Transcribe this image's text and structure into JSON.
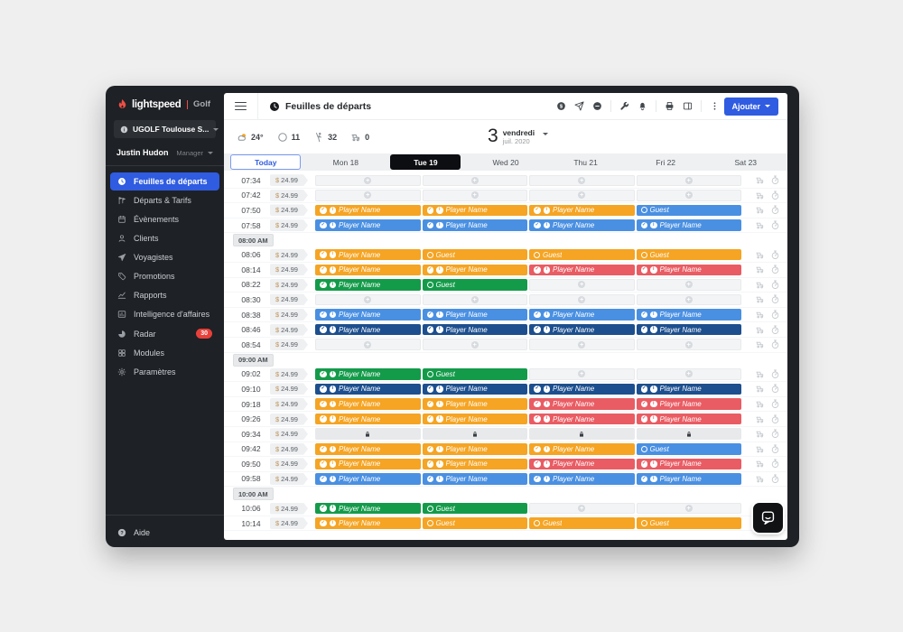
{
  "colors": {
    "accent_blue": "#2F5CE0",
    "brand_red": "#ED4F45",
    "badge_red": "#E8403A",
    "selected_tab_bg": "#0C0E12",
    "slot": {
      "orange": "#F5A423",
      "red": "#E95C63",
      "green": "#149B4A",
      "blue": "#4A90E2",
      "navy": "#1D4F8E"
    },
    "empty_bg": "#F3F4F6",
    "locked_bg": "#E7E9EB"
  },
  "sidebar": {
    "logo": {
      "brand": "lightspeed",
      "product": "Golf"
    },
    "course": "UGOLF Toulouse S...",
    "user": {
      "name": "Justin Hudon",
      "role": "Manager"
    },
    "items": [
      {
        "label": "Feuilles de départs",
        "icon": "clock",
        "active": true
      },
      {
        "label": "Départs & Tarifs",
        "icon": "flags"
      },
      {
        "label": "Évènements",
        "icon": "calendar"
      },
      {
        "label": "Clients",
        "icon": "person"
      },
      {
        "label": "Voyagistes",
        "icon": "plane"
      },
      {
        "label": "Promotions",
        "icon": "tag"
      },
      {
        "label": "Rapports",
        "icon": "chart"
      },
      {
        "label": "Intelligence d'affaires",
        "icon": "bi"
      },
      {
        "label": "Radar",
        "icon": "radar",
        "badge": "30"
      },
      {
        "label": "Modules",
        "icon": "modules"
      },
      {
        "label": "Paramètres",
        "icon": "gear"
      }
    ],
    "help_label": "Aide"
  },
  "topbar": {
    "title": "Feuilles de départs",
    "add_label": "Ajouter",
    "action_groups": [
      [
        "dollar-circle",
        "send",
        "minus-circle"
      ],
      [
        "wrench",
        "bell"
      ],
      [
        "printer",
        "panel"
      ],
      [
        "kebab"
      ]
    ]
  },
  "weather": {
    "items": [
      {
        "name": "temperature",
        "icon": "cloud-sun",
        "value": "24°"
      },
      {
        "name": "rounds",
        "icon": "circle",
        "value": "11"
      },
      {
        "name": "golfers",
        "icon": "golfer",
        "value": "32"
      },
      {
        "name": "carts",
        "icon": "cart",
        "value": "0"
      }
    ]
  },
  "date": {
    "day": "3",
    "weekday": "vendredi",
    "monthyear": "juil. 2020"
  },
  "tabs": [
    {
      "label": "Today",
      "variant": "today"
    },
    {
      "label": "Mon 18"
    },
    {
      "label": "Tue 19",
      "variant": "selected"
    },
    {
      "label": "Wed 20"
    },
    {
      "label": "Thu 21"
    },
    {
      "label": "Fri 22"
    },
    {
      "label": "Sat 23"
    }
  ],
  "sheet": {
    "price": {
      "currency": "$",
      "amount": "24.99"
    },
    "rows": [
      {
        "type": "row",
        "time": "07:34",
        "slots": [
          {
            "kind": "empty"
          },
          {
            "kind": "empty"
          },
          {
            "kind": "empty"
          },
          {
            "kind": "empty"
          }
        ]
      },
      {
        "type": "row",
        "time": "07:42",
        "slots": [
          {
            "kind": "empty"
          },
          {
            "kind": "empty"
          },
          {
            "kind": "empty"
          },
          {
            "kind": "empty"
          }
        ]
      },
      {
        "type": "row",
        "time": "07:50",
        "slots": [
          {
            "kind": "player",
            "label": "Player Name",
            "color": "orange"
          },
          {
            "kind": "player",
            "label": "Player Name",
            "color": "orange"
          },
          {
            "kind": "player",
            "label": "Player Name",
            "color": "orange"
          },
          {
            "kind": "guest",
            "label": "Guest",
            "color": "blue"
          }
        ]
      },
      {
        "type": "row",
        "time": "07:58",
        "slots": [
          {
            "kind": "player",
            "label": "Player Name",
            "color": "blue"
          },
          {
            "kind": "player",
            "label": "Player Name",
            "color": "blue"
          },
          {
            "kind": "player",
            "label": "Player Name",
            "color": "blue"
          },
          {
            "kind": "player",
            "label": "Player Name",
            "color": "blue"
          }
        ]
      },
      {
        "type": "header",
        "label": "08:00 AM"
      },
      {
        "type": "row",
        "time": "08:06",
        "slots": [
          {
            "kind": "player",
            "label": "Player Name",
            "color": "orange"
          },
          {
            "kind": "guest",
            "label": "Guest",
            "color": "orange"
          },
          {
            "kind": "guest",
            "label": "Guest",
            "color": "orange"
          },
          {
            "kind": "guest",
            "label": "Guest",
            "color": "orange"
          }
        ]
      },
      {
        "type": "row",
        "time": "08:14",
        "slots": [
          {
            "kind": "player",
            "label": "Player Name",
            "color": "orange"
          },
          {
            "kind": "player",
            "label": "Player Name",
            "color": "orange"
          },
          {
            "kind": "player",
            "label": "Player Name",
            "color": "red"
          },
          {
            "kind": "player",
            "label": "Player Name",
            "color": "red"
          }
        ]
      },
      {
        "type": "row",
        "time": "08:22",
        "slots": [
          {
            "kind": "player",
            "label": "Player Name",
            "color": "green"
          },
          {
            "kind": "guest",
            "label": "Guest",
            "color": "green"
          },
          {
            "kind": "empty"
          },
          {
            "kind": "empty"
          }
        ]
      },
      {
        "type": "row",
        "time": "08:30",
        "slots": [
          {
            "kind": "empty"
          },
          {
            "kind": "empty"
          },
          {
            "kind": "empty"
          },
          {
            "kind": "empty"
          }
        ]
      },
      {
        "type": "row",
        "time": "08:38",
        "slots": [
          {
            "kind": "player",
            "label": "Player Name",
            "color": "blue"
          },
          {
            "kind": "player",
            "label": "Player Name",
            "color": "blue"
          },
          {
            "kind": "player",
            "label": "Player Name",
            "color": "blue"
          },
          {
            "kind": "player",
            "label": "Player Name",
            "color": "blue"
          }
        ]
      },
      {
        "type": "row",
        "time": "08:46",
        "slots": [
          {
            "kind": "player",
            "label": "Player Name",
            "color": "navy"
          },
          {
            "kind": "player",
            "label": "Player Name",
            "color": "navy"
          },
          {
            "kind": "player",
            "label": "Player Name",
            "color": "navy"
          },
          {
            "kind": "player",
            "label": "Player Name",
            "color": "navy"
          }
        ]
      },
      {
        "type": "row",
        "time": "08:54",
        "slots": [
          {
            "kind": "empty"
          },
          {
            "kind": "empty"
          },
          {
            "kind": "empty"
          },
          {
            "kind": "empty"
          }
        ]
      },
      {
        "type": "header",
        "label": "09:00 AM"
      },
      {
        "type": "row",
        "time": "09:02",
        "slots": [
          {
            "kind": "player",
            "label": "Player Name",
            "color": "green"
          },
          {
            "kind": "guest",
            "label": "Guest",
            "color": "green"
          },
          {
            "kind": "empty"
          },
          {
            "kind": "empty"
          }
        ]
      },
      {
        "type": "row",
        "time": "09:10",
        "slots": [
          {
            "kind": "player",
            "label": "Player Name",
            "color": "navy"
          },
          {
            "kind": "player",
            "label": "Player Name",
            "color": "navy"
          },
          {
            "kind": "player",
            "label": "Player Name",
            "color": "navy"
          },
          {
            "kind": "player",
            "label": "Player Name",
            "color": "navy"
          }
        ]
      },
      {
        "type": "row",
        "time": "09:18",
        "slots": [
          {
            "kind": "player",
            "label": "Player Name",
            "color": "orange"
          },
          {
            "kind": "player",
            "label": "Player Name",
            "color": "orange"
          },
          {
            "kind": "player",
            "label": "Player Name",
            "color": "red"
          },
          {
            "kind": "player",
            "label": "Player Name",
            "color": "red"
          }
        ]
      },
      {
        "type": "row",
        "time": "09:26",
        "slots": [
          {
            "kind": "player",
            "label": "Player Name",
            "color": "orange"
          },
          {
            "kind": "player",
            "label": "Player Name",
            "color": "orange"
          },
          {
            "kind": "player",
            "label": "Player Name",
            "color": "red"
          },
          {
            "kind": "player",
            "label": "Player Name",
            "color": "red"
          }
        ]
      },
      {
        "type": "row",
        "time": "09:34",
        "slots": [
          {
            "kind": "locked"
          },
          {
            "kind": "locked"
          },
          {
            "kind": "locked"
          },
          {
            "kind": "locked"
          }
        ]
      },
      {
        "type": "row",
        "time": "09:42",
        "slots": [
          {
            "kind": "player",
            "label": "Player Name",
            "color": "orange"
          },
          {
            "kind": "player",
            "label": "Player Name",
            "color": "orange"
          },
          {
            "kind": "player",
            "label": "Player Name",
            "color": "orange"
          },
          {
            "kind": "guest",
            "label": "Guest",
            "color": "blue"
          }
        ]
      },
      {
        "type": "row",
        "time": "09:50",
        "slots": [
          {
            "kind": "player",
            "label": "Player Name",
            "color": "orange"
          },
          {
            "kind": "player",
            "label": "Player Name",
            "color": "orange"
          },
          {
            "kind": "player",
            "label": "Player Name",
            "color": "red"
          },
          {
            "kind": "player",
            "label": "Player Name",
            "color": "red"
          }
        ]
      },
      {
        "type": "row",
        "time": "09:58",
        "slots": [
          {
            "kind": "player",
            "label": "Player Name",
            "color": "blue"
          },
          {
            "kind": "player",
            "label": "Player Name",
            "color": "blue"
          },
          {
            "kind": "player",
            "label": "Player Name",
            "color": "blue"
          },
          {
            "kind": "player",
            "label": "Player Name",
            "color": "blue"
          }
        ]
      },
      {
        "type": "header",
        "label": "10:00 AM"
      },
      {
        "type": "row",
        "time": "10:06",
        "slots": [
          {
            "kind": "player",
            "label": "Player Name",
            "color": "green"
          },
          {
            "kind": "guest",
            "label": "Guest",
            "color": "green"
          },
          {
            "kind": "empty"
          },
          {
            "kind": "empty"
          }
        ]
      },
      {
        "type": "row",
        "time": "10:14",
        "slots": [
          {
            "kind": "player",
            "label": "Player Name",
            "color": "orange"
          },
          {
            "kind": "guest",
            "label": "Guest",
            "color": "orange"
          },
          {
            "kind": "guest",
            "label": "Guest",
            "color": "orange"
          },
          {
            "kind": "guest",
            "label": "Guest",
            "color": "orange"
          }
        ]
      }
    ]
  }
}
